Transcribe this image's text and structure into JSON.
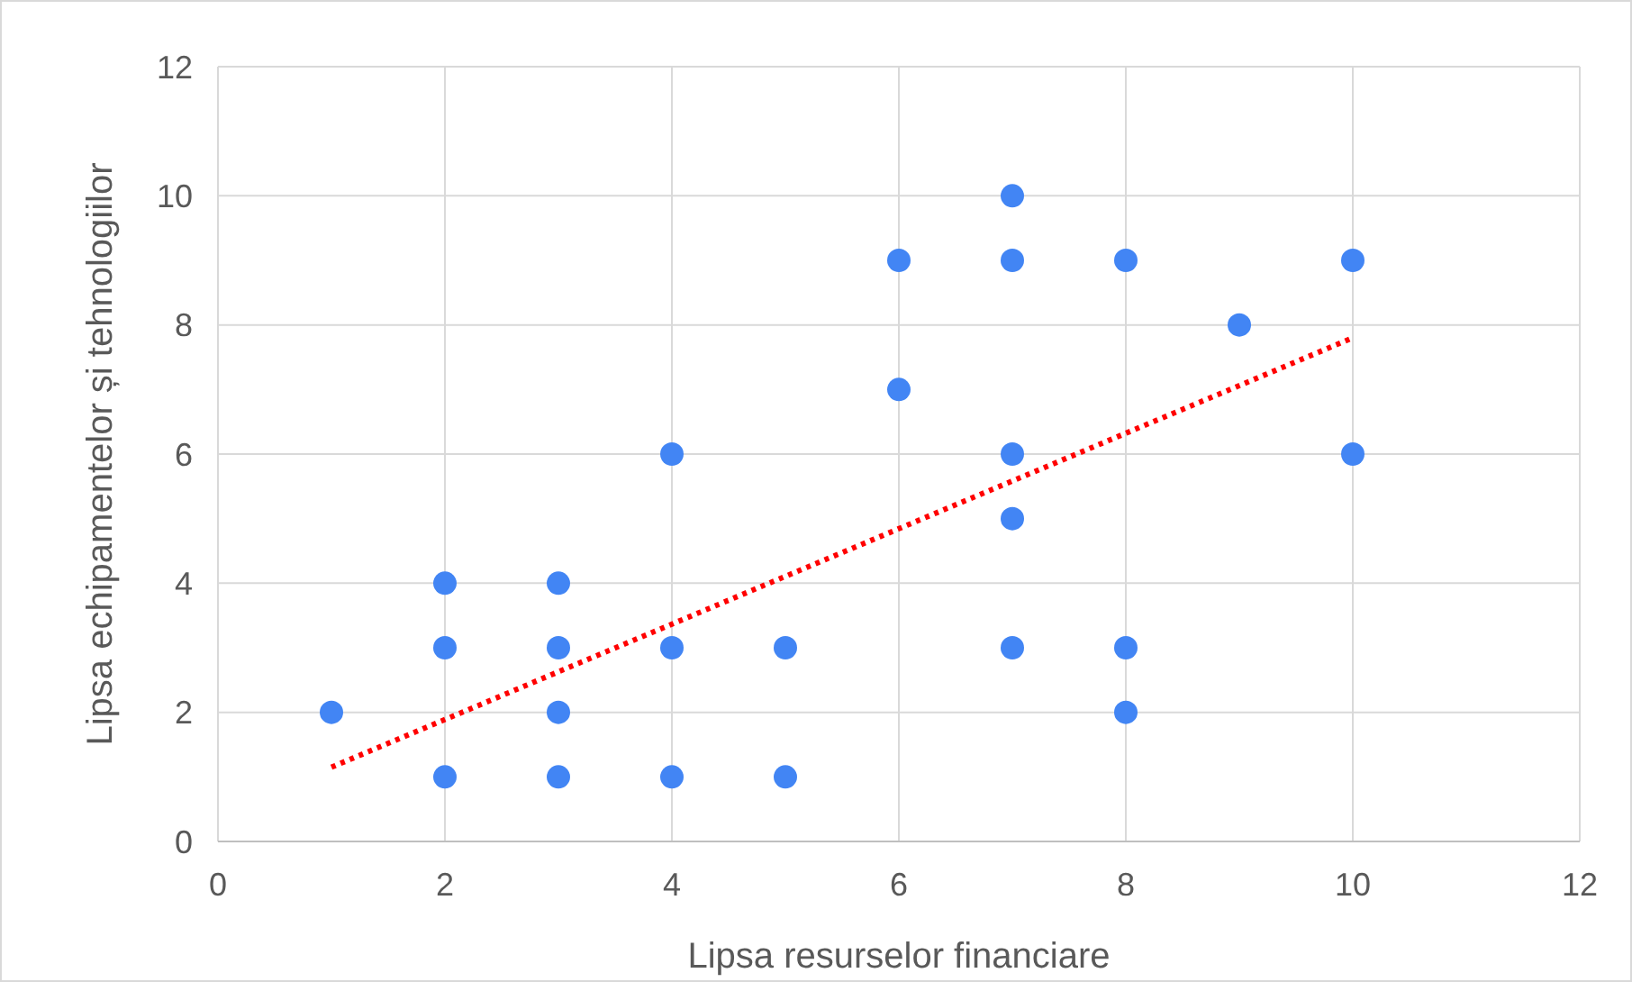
{
  "chart_data": {
    "type": "scatter",
    "xlabel": "Lipsa resurselor financiare",
    "ylabel": "Lipsa echipamentelor și tehnologiilor",
    "xlim": [
      0,
      12
    ],
    "ylim": [
      0,
      12
    ],
    "xticks": [
      0,
      2,
      4,
      6,
      8,
      10,
      12
    ],
    "yticks": [
      0,
      2,
      4,
      6,
      8,
      10,
      12
    ],
    "grid": true,
    "series": [
      {
        "color": "#4285f4",
        "marker": "circle",
        "x": [
          1,
          2,
          2,
          2,
          3,
          3,
          3,
          3,
          4,
          4,
          4,
          5,
          5,
          6,
          6,
          7,
          7,
          7,
          7,
          7,
          8,
          8,
          8,
          9,
          10,
          10
        ],
        "values": [
          2,
          4,
          3,
          1,
          4,
          3,
          2,
          1,
          6,
          3,
          1,
          3,
          1,
          9,
          7,
          10,
          9,
          6,
          5,
          3,
          9,
          3,
          2,
          8,
          9,
          6
        ]
      },
      {
        "type": "line",
        "color": "#ff0000",
        "line_style": "dotted",
        "x": [
          1,
          10
        ],
        "values": [
          1.15,
          7.8
        ]
      }
    ]
  }
}
